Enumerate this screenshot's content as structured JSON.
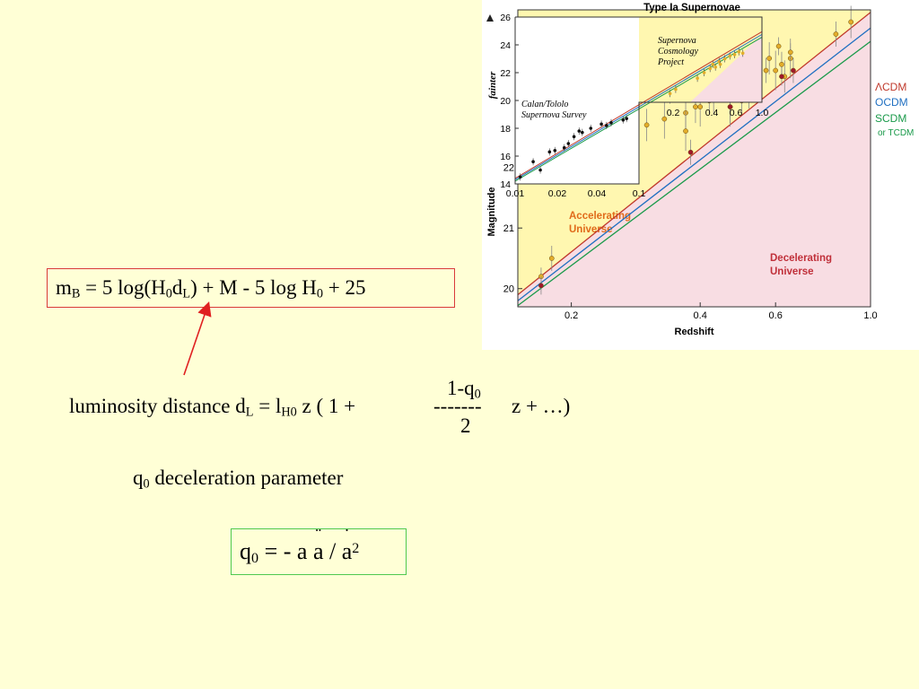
{
  "slide": {
    "formula_mb": {
      "m": "m",
      "m_sub": "B",
      "part1": " = 5 log(H",
      "h_sub": "0",
      "d": "d",
      "d_sub": "L",
      "part2": ") + M  - 5 log H",
      "h2_sub": "0",
      "part3": " + 25"
    },
    "lum": {
      "prefix": "luminosity distance d",
      "d_sub": "L",
      "mid": " = l",
      "l_sub": "H0",
      "after": " z ( 1 + ",
      "frac_num": "1-q",
      "frac_num_sub": "0",
      "frac_line": "-------",
      "frac_den": "2",
      "tail": "z + …)"
    },
    "decel": {
      "q": "q",
      "q_sub": "0",
      "text": " deceleration parameter"
    },
    "formula_q": {
      "q": "q",
      "q_sub": "0",
      "eq": " = - a ",
      "a_ddot": "a",
      "slash": " / ",
      "a_dot": "a",
      "sup": "2"
    },
    "colors": {
      "background": "#ffffd6",
      "arrow": "#e02020",
      "box_red": "#d93a3a",
      "box_green": "#4fc94f"
    }
  },
  "chart_data": [
    {
      "type": "scatter",
      "title": "Type Ia Supernovae",
      "xlabel": "Redshift",
      "ylabel": "Magnitude",
      "xscale": "log",
      "xlim": [
        0.15,
        1.0
      ],
      "ylim": [
        19.7,
        24.6
      ],
      "x_ticks": [
        "0.2",
        "0.4",
        "0.6",
        "1.0"
      ],
      "y_ticks": [
        "20",
        "21",
        "22"
      ],
      "regions": [
        {
          "label": "Accelerating\nUniverse",
          "color": "#fff7b0"
        },
        {
          "label": "Decelerating\nUniverse",
          "color": "#f8dde3"
        }
      ],
      "legend": [
        "ΛCDM",
        "OCDM",
        "SCDM",
        "or TCDM"
      ],
      "legend_colors": [
        "#c0392b",
        "#1f6fc1",
        "#1a9a4a",
        "#1a9a4a"
      ],
      "legend_placement": "right",
      "series": [
        {
          "name": "ΛCDM",
          "color": "#c0392b",
          "x": [
            0.15,
            1.0
          ],
          "y": [
            19.9,
            24.56
          ]
        },
        {
          "name": "OCDM",
          "color": "#1f6fc1",
          "x": [
            0.15,
            1.0
          ],
          "y": [
            19.8,
            24.3
          ]
        },
        {
          "name": "SCDM",
          "color": "#1a9a4a",
          "x": [
            0.15,
            1.0
          ],
          "y": [
            19.72,
            24.08
          ]
        },
        {
          "name": "",
          "color": "#e3ad2a",
          "x": [
            0.17,
            0.18,
            0.3,
            0.33,
            0.34,
            0.36,
            0.37,
            0.37,
            0.38,
            0.39,
            0.39,
            0.4,
            0.41,
            0.42,
            0.43,
            0.43,
            0.45,
            0.45,
            0.46,
            0.47,
            0.48,
            0.5,
            0.5,
            0.52,
            0.54,
            0.57,
            0.58,
            0.6,
            0.61,
            0.62,
            0.63,
            0.65,
            0.65,
            0.83,
            0.9
          ],
          "y": [
            20.2,
            20.5,
            22.7,
            22.8,
            23.2,
            23.3,
            22.9,
            22.6,
            23.5,
            23.2,
            23.0,
            23.0,
            23.5,
            23.1,
            23.7,
            23.2,
            23.3,
            23.7,
            23.4,
            23.0,
            23.4,
            23.1,
            23.4,
            23.6,
            23.4,
            23.6,
            23.8,
            23.6,
            24.0,
            23.7,
            23.5,
            23.8,
            23.9,
            24.2,
            24.4
          ]
        },
        {
          "name": "",
          "color": "#a0182a",
          "x": [
            0.17,
            0.38,
            0.47,
            0.52,
            0.62,
            0.66
          ],
          "y": [
            20.05,
            22.25,
            23.0,
            23.3,
            23.5,
            23.6
          ]
        }
      ]
    },
    {
      "type": "scatter",
      "title": "",
      "xlabel": "",
      "ylabel": "fainter",
      "xscale": "log",
      "xlim": [
        0.01,
        1.0
      ],
      "ylim": [
        14,
        26
      ],
      "x_ticks": [
        "0.01",
        "0.02",
        "0.04",
        "0.1",
        "0.2",
        "0.4",
        "0.6",
        "1.0"
      ],
      "y_ticks": [
        "14",
        "16",
        "18",
        "20",
        "22",
        "24",
        "26"
      ],
      "annotations": [
        "Calan/Tololo\nSupernova Survey",
        "Supernova\nCosmology\nProject"
      ],
      "series": [
        {
          "name": "",
          "color": "#111111",
          "x": [
            0.011,
            0.014,
            0.016,
            0.019,
            0.021,
            0.025,
            0.027,
            0.03,
            0.033,
            0.035,
            0.041,
            0.05,
            0.055,
            0.06,
            0.075,
            0.08
          ],
          "y": [
            14.5,
            15.6,
            15.0,
            16.3,
            16.4,
            16.6,
            16.9,
            17.4,
            17.8,
            17.7,
            18.0,
            18.3,
            18.2,
            18.4,
            18.6,
            18.7
          ]
        },
        {
          "name": "",
          "color": "#e3ad2a",
          "x": [
            0.18,
            0.2,
            0.3,
            0.34,
            0.38,
            0.4,
            0.42,
            0.45,
            0.46,
            0.5,
            0.55,
            0.6,
            0.65,
            0.7
          ],
          "y": [
            20.5,
            20.8,
            21.6,
            22.0,
            22.3,
            22.6,
            22.4,
            22.8,
            22.6,
            23.0,
            23.2,
            23.3,
            23.5,
            23.4
          ]
        }
      ]
    }
  ]
}
